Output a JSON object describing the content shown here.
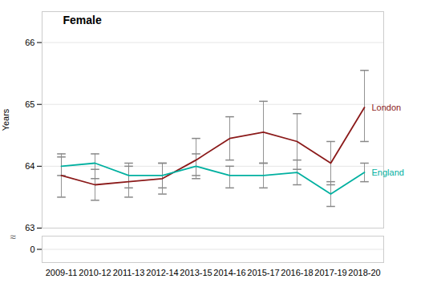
{
  "chart_data": [
    {
      "type": "line",
      "categories": [
        "2009-11",
        "2010-12",
        "2011-13",
        "2012-14",
        "2013-15",
        "2014-16",
        "2015-17",
        "2016-18",
        "2017-19",
        "2018-20"
      ],
      "series": [
        {
          "name": "London",
          "color": "#8B1A1A",
          "values": [
            63.85,
            63.7,
            63.75,
            63.8,
            64.1,
            64.45,
            64.55,
            64.4,
            64.05,
            64.95
          ],
          "error_low": [
            0.35,
            0.25,
            0.25,
            0.25,
            0.25,
            0.35,
            0.5,
            0.45,
            0.35,
            0.55
          ],
          "error_high": [
            0.35,
            0.25,
            0.25,
            0.25,
            0.35,
            0.35,
            0.5,
            0.45,
            0.35,
            0.6
          ]
        },
        {
          "name": "England",
          "color": "#00B0A0",
          "values": [
            64.0,
            64.05,
            63.85,
            63.85,
            64.0,
            63.85,
            63.85,
            63.9,
            63.55,
            63.9
          ],
          "error_low": [
            0.15,
            0.25,
            0.2,
            0.2,
            0.2,
            0.2,
            0.2,
            0.2,
            0.2,
            0.15
          ],
          "error_high": [
            0.15,
            0.15,
            0.2,
            0.2,
            0.2,
            0.15,
            0.2,
            0.2,
            0.2,
            0.15
          ]
        }
      ],
      "ylabel": "Years",
      "annotation": "Female",
      "ylim": [
        63.0,
        66.5
      ],
      "yticks": [
        63,
        64,
        65,
        66
      ],
      "grid": true,
      "tick_labels": "y"
    },
    {
      "type": "line",
      "categories": [
        "2009-11",
        "2010-12",
        "2011-13",
        "2012-14",
        "2013-15",
        "2014-16",
        "2015-17",
        "2016-18",
        "2017-19",
        "2018-20"
      ],
      "series": [],
      "annotation": "≈",
      "ylim": [
        -0.5,
        0.5
      ],
      "yticks": [
        0
      ],
      "grid": true
    }
  ]
}
